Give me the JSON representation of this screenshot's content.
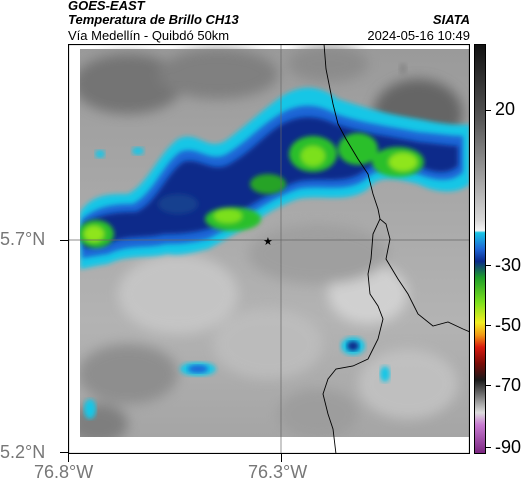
{
  "header": {
    "satellite": "GOES-EAST",
    "product": "Temperatura de Brillo CH13",
    "location": "Vía Medellín - Quibdó 50km",
    "source": "SIATA",
    "datetime": "2024-05-16 10:49"
  },
  "axes": {
    "y_ticks": [
      "5.7°N",
      "5.2°N"
    ],
    "x_ticks": [
      "76.8°W",
      "76.3°W"
    ]
  },
  "colorbar": {
    "ticks": [
      "20",
      "-30",
      "-50",
      "-70",
      "-90"
    ]
  },
  "marker": {
    "symbol": "★",
    "name": "location-marker"
  },
  "colors": {
    "cold_band_core": "#7be01e",
    "cold_band_edge": "#0b2a8a",
    "cyan": "#19c6e6",
    "frame": "#000000"
  }
}
